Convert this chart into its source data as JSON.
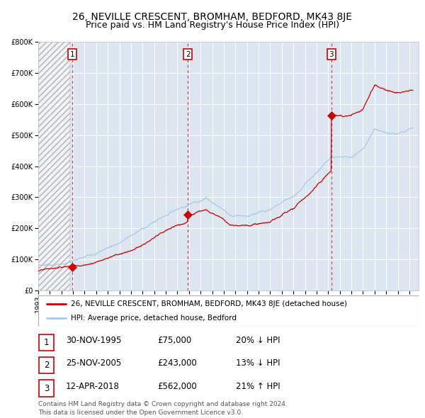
{
  "title": "26, NEVILLE CRESCENT, BROMHAM, BEDFORD, MK43 8JE",
  "subtitle": "Price paid vs. HM Land Registry's House Price Index (HPI)",
  "ylim": [
    0,
    800000
  ],
  "yticks": [
    0,
    100000,
    200000,
    300000,
    400000,
    500000,
    600000,
    700000,
    800000
  ],
  "xlim_start": 1993.0,
  "xlim_end": 2025.8,
  "plot_bg_color": "#dce6f0",
  "hatched_region_end": 1995.75,
  "red_line_color": "#cc0000",
  "blue_line_color": "#a8c8e8",
  "sale_dates": [
    1995.917,
    2005.9,
    2018.28
  ],
  "sale_prices": [
    75000,
    243000,
    562000
  ],
  "transaction_labels": [
    "1",
    "2",
    "3"
  ],
  "legend_red_label": "26, NEVILLE CRESCENT, BROMHAM, BEDFORD, MK43 8JE (detached house)",
  "legend_blue_label": "HPI: Average price, detached house, Bedford",
  "table_rows": [
    {
      "num": "1",
      "date": "30-NOV-1995",
      "price": "£75,000",
      "pct": "20% ↓ HPI"
    },
    {
      "num": "2",
      "date": "25-NOV-2005",
      "price": "£243,000",
      "pct": "13% ↓ HPI"
    },
    {
      "num": "3",
      "date": "12-APR-2018",
      "price": "£562,000",
      "pct": "21% ↑ HPI"
    }
  ],
  "footer": "Contains HM Land Registry data © Crown copyright and database right 2024.\nThis data is licensed under the Open Government Licence v3.0.",
  "title_fontsize": 10,
  "subtitle_fontsize": 9,
  "tick_fontsize": 7
}
